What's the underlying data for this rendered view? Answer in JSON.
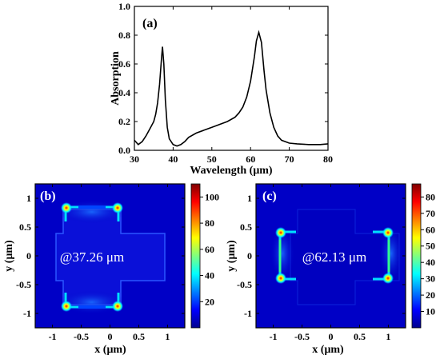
{
  "panels": [
    {
      "panel_label": "(a)",
      "chart_data": {
        "type": "line",
        "xlabel": "Wavelength (μm)",
        "ylabel": "Absorption",
        "xlim": [
          30,
          80
        ],
        "ylim": [
          0.0,
          1.0
        ],
        "xticks": [
          30,
          40,
          50,
          60,
          70,
          80
        ],
        "yticks": [
          0.0,
          0.2,
          0.4,
          0.6,
          0.8,
          1.0
        ],
        "xtick_labels": [
          "30",
          "40",
          "50",
          "60",
          "70",
          "80"
        ],
        "ytick_labels": [
          "0.0",
          "0.2",
          "0.4",
          "0.6",
          "0.8",
          "1.0"
        ],
        "series": [
          {
            "x": [
              30,
              31,
              32,
              33,
              34,
              35,
              35.5,
              36,
              36.5,
              37,
              37.26,
              37.6,
              38,
              38.5,
              39,
              40,
              41,
              42,
              43,
              44,
              46,
              48,
              50,
              52,
              54,
              56,
              57,
              58,
              59,
              60,
              61,
              61.5,
              62.13,
              62.8,
              63.5,
              64,
              65,
              66,
              67,
              68,
              70,
              72,
              75,
              78,
              80
            ],
            "y": [
              0.07,
              0.04,
              0.06,
              0.1,
              0.15,
              0.2,
              0.25,
              0.33,
              0.46,
              0.64,
              0.72,
              0.6,
              0.35,
              0.16,
              0.08,
              0.04,
              0.03,
              0.04,
              0.06,
              0.09,
              0.12,
              0.14,
              0.16,
              0.18,
              0.2,
              0.23,
              0.26,
              0.3,
              0.37,
              0.48,
              0.65,
              0.76,
              0.82,
              0.75,
              0.55,
              0.42,
              0.26,
              0.16,
              0.1,
              0.07,
              0.05,
              0.045,
              0.04,
              0.04,
              0.045
            ]
          }
        ]
      }
    },
    {
      "panel_label": "(b)",
      "annotation": "@37.26 μm",
      "chart_data": {
        "type": "heatmap",
        "xlabel": "x (μm)",
        "ylabel": "y (μm)",
        "xlim": [
          -1.3,
          1.3
        ],
        "ylim": [
          -1.25,
          1.25
        ],
        "xticks": [
          -1,
          -0.5,
          0,
          0.5,
          1
        ],
        "yticks": [
          -1,
          -0.5,
          0,
          0.5,
          1
        ],
        "xtick_labels": [
          "-1",
          "-0.5",
          "0",
          "0.5",
          "1"
        ],
        "ytick_labels": [
          "-1",
          "-0.5",
          "0",
          "0.5",
          "1"
        ],
        "colorbar": {
          "min": 0,
          "max": 110,
          "ticks": [
            20,
            40,
            60,
            80,
            100
          ],
          "tick_labels": [
            "20",
            "40",
            "60",
            "80",
            "100"
          ]
        }
      }
    },
    {
      "panel_label": "(c)",
      "annotation": "@62.13 μm",
      "chart_data": {
        "type": "heatmap",
        "xlabel": "x (μm)",
        "ylabel": "y (μm)",
        "xlim": [
          -1.3,
          1.3
        ],
        "ylim": [
          -1.25,
          1.25
        ],
        "xticks": [
          -1,
          -0.5,
          0,
          0.5,
          1
        ],
        "yticks": [
          -1,
          -0.5,
          0,
          0.5,
          1
        ],
        "xtick_labels": [
          "-1",
          "-0.5",
          "0",
          "0.5",
          "1"
        ],
        "ytick_labels": [
          "-1",
          "-0.5",
          "0",
          "0.5",
          "1"
        ],
        "colorbar": {
          "min": 0,
          "max": 88,
          "ticks": [
            10,
            20,
            30,
            40,
            50,
            60,
            70,
            80
          ],
          "tick_labels": [
            "10",
            "20",
            "30",
            "40",
            "50",
            "60",
            "70",
            "80"
          ]
        }
      }
    }
  ]
}
